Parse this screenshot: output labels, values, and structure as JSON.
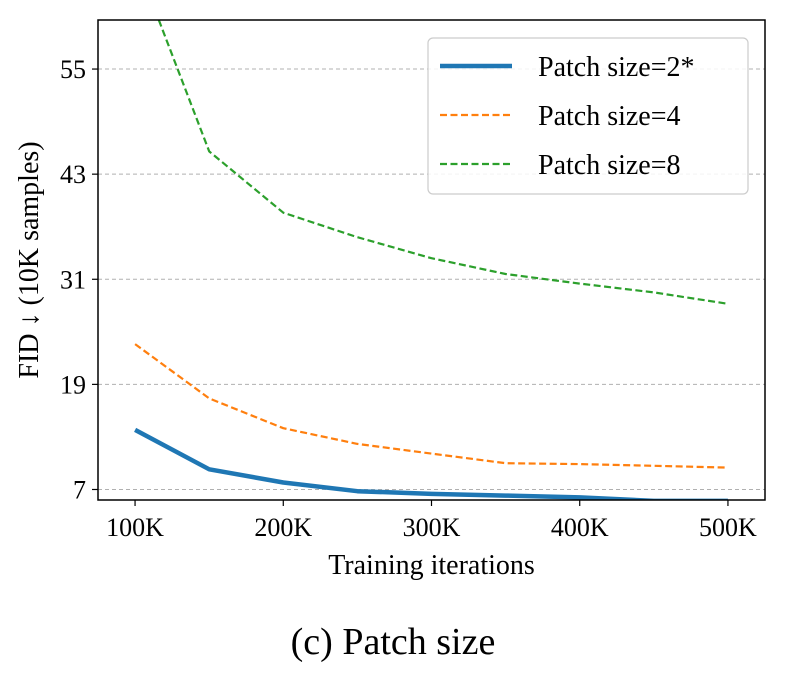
{
  "chart_data": {
    "type": "line",
    "title": "",
    "xlabel": "Training iterations",
    "ylabel": "FID ↓ (10K samples)",
    "caption": "(c) Patch size",
    "x": [
      100,
      150,
      200,
      250,
      300,
      350,
      400,
      450,
      500
    ],
    "xticks": [
      100,
      200,
      300,
      400,
      500
    ],
    "xtick_labels": [
      "100K",
      "200K",
      "300K",
      "400K",
      "500K"
    ],
    "yticks": [
      7,
      19,
      31,
      43,
      55
    ],
    "ytick_labels": [
      "7",
      "19",
      "31",
      "43",
      "55"
    ],
    "xlim": [
      75,
      525
    ],
    "ylim": [
      5.8,
      60.6
    ],
    "grid": "horizontal dashed",
    "legend_position": "top-right",
    "series": [
      {
        "name": "Patch size=2*",
        "color": "#1f77b4",
        "style": "solid",
        "width": 4.5,
        "values": [
          13.8,
          9.3,
          7.8,
          6.8,
          6.5,
          6.3,
          6.1,
          5.7,
          5.7
        ]
      },
      {
        "name": "Patch size=4",
        "color": "#ff7f0e",
        "style": "dashed",
        "width": 2.2,
        "values": [
          23.6,
          17.4,
          14.0,
          12.2,
          11.1,
          10.0,
          9.9,
          9.7,
          9.5
        ]
      },
      {
        "name": "Patch size=8",
        "color": "#2ca02c",
        "style": "dashed",
        "width": 2.2,
        "x": [
          116,
          150,
          200,
          250,
          300,
          350,
          400,
          450,
          500
        ],
        "values": [
          60.6,
          45.6,
          38.6,
          35.8,
          33.4,
          31.6,
          30.5,
          29.5,
          28.2
        ]
      }
    ]
  }
}
